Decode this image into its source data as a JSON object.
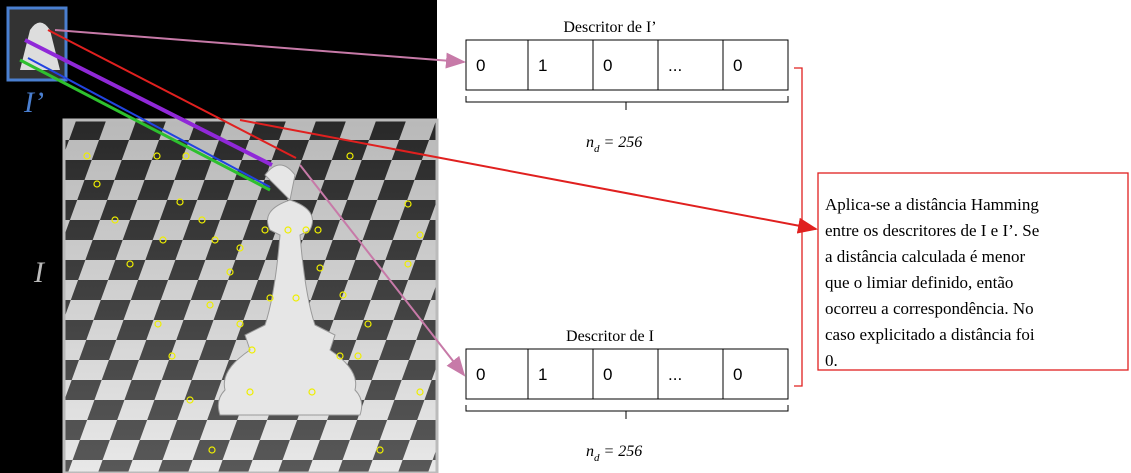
{
  "labels": {
    "small_image": "I’",
    "large_image": "I"
  },
  "descriptor_top": {
    "title": "Descritor de I’",
    "cells": [
      "0",
      "1",
      "0",
      "...",
      "0"
    ],
    "size": {
      "base": "n",
      "sub": "d",
      "rest": " = 256"
    }
  },
  "descriptor_bottom": {
    "title": "Descritor de I",
    "cells": [
      "0",
      "1",
      "0",
      "...",
      "0"
    ],
    "size": {
      "base": "n",
      "sub": "d",
      "rest": " = 256"
    }
  },
  "note": {
    "lines": [
      "Aplica-se a distância Hamming",
      "entre os descritores de I e I’. Se",
      "a distância calculada é menor",
      "que o limiar definido, então",
      "ocorreu a correspondência. No",
      "caso explicitado a distância foi",
      "0."
    ]
  }
}
